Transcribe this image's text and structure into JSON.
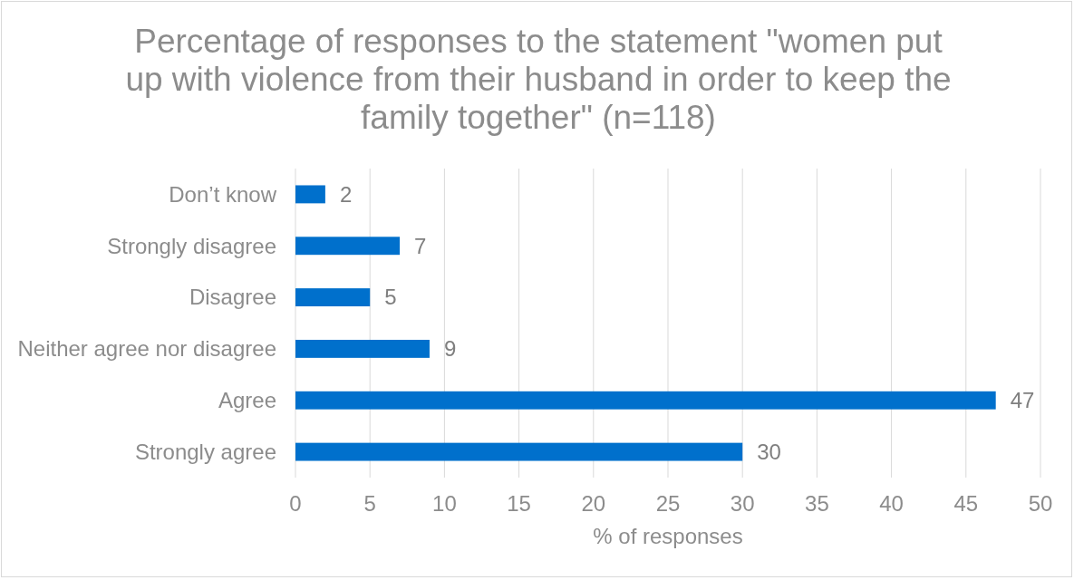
{
  "chart_data": {
    "type": "bar",
    "orientation": "horizontal",
    "title": "Percentage of responses to the statement \"women put up with violence from their husband in order to keep the family together\" (n=118)",
    "xlabel": "% of responses",
    "categories": [
      "Don’t know",
      "Strongly disagree",
      "Disagree",
      "Neither agree nor disagree",
      "Agree",
      "Strongly agree"
    ],
    "values": [
      2,
      7,
      5,
      9,
      47,
      30
    ],
    "color": "#0070cc",
    "xlim": [
      0,
      50
    ],
    "xticks": [
      0,
      5,
      10,
      15,
      20,
      25,
      30,
      35,
      40,
      45,
      50
    ],
    "grid": "x",
    "data_labels": true
  }
}
